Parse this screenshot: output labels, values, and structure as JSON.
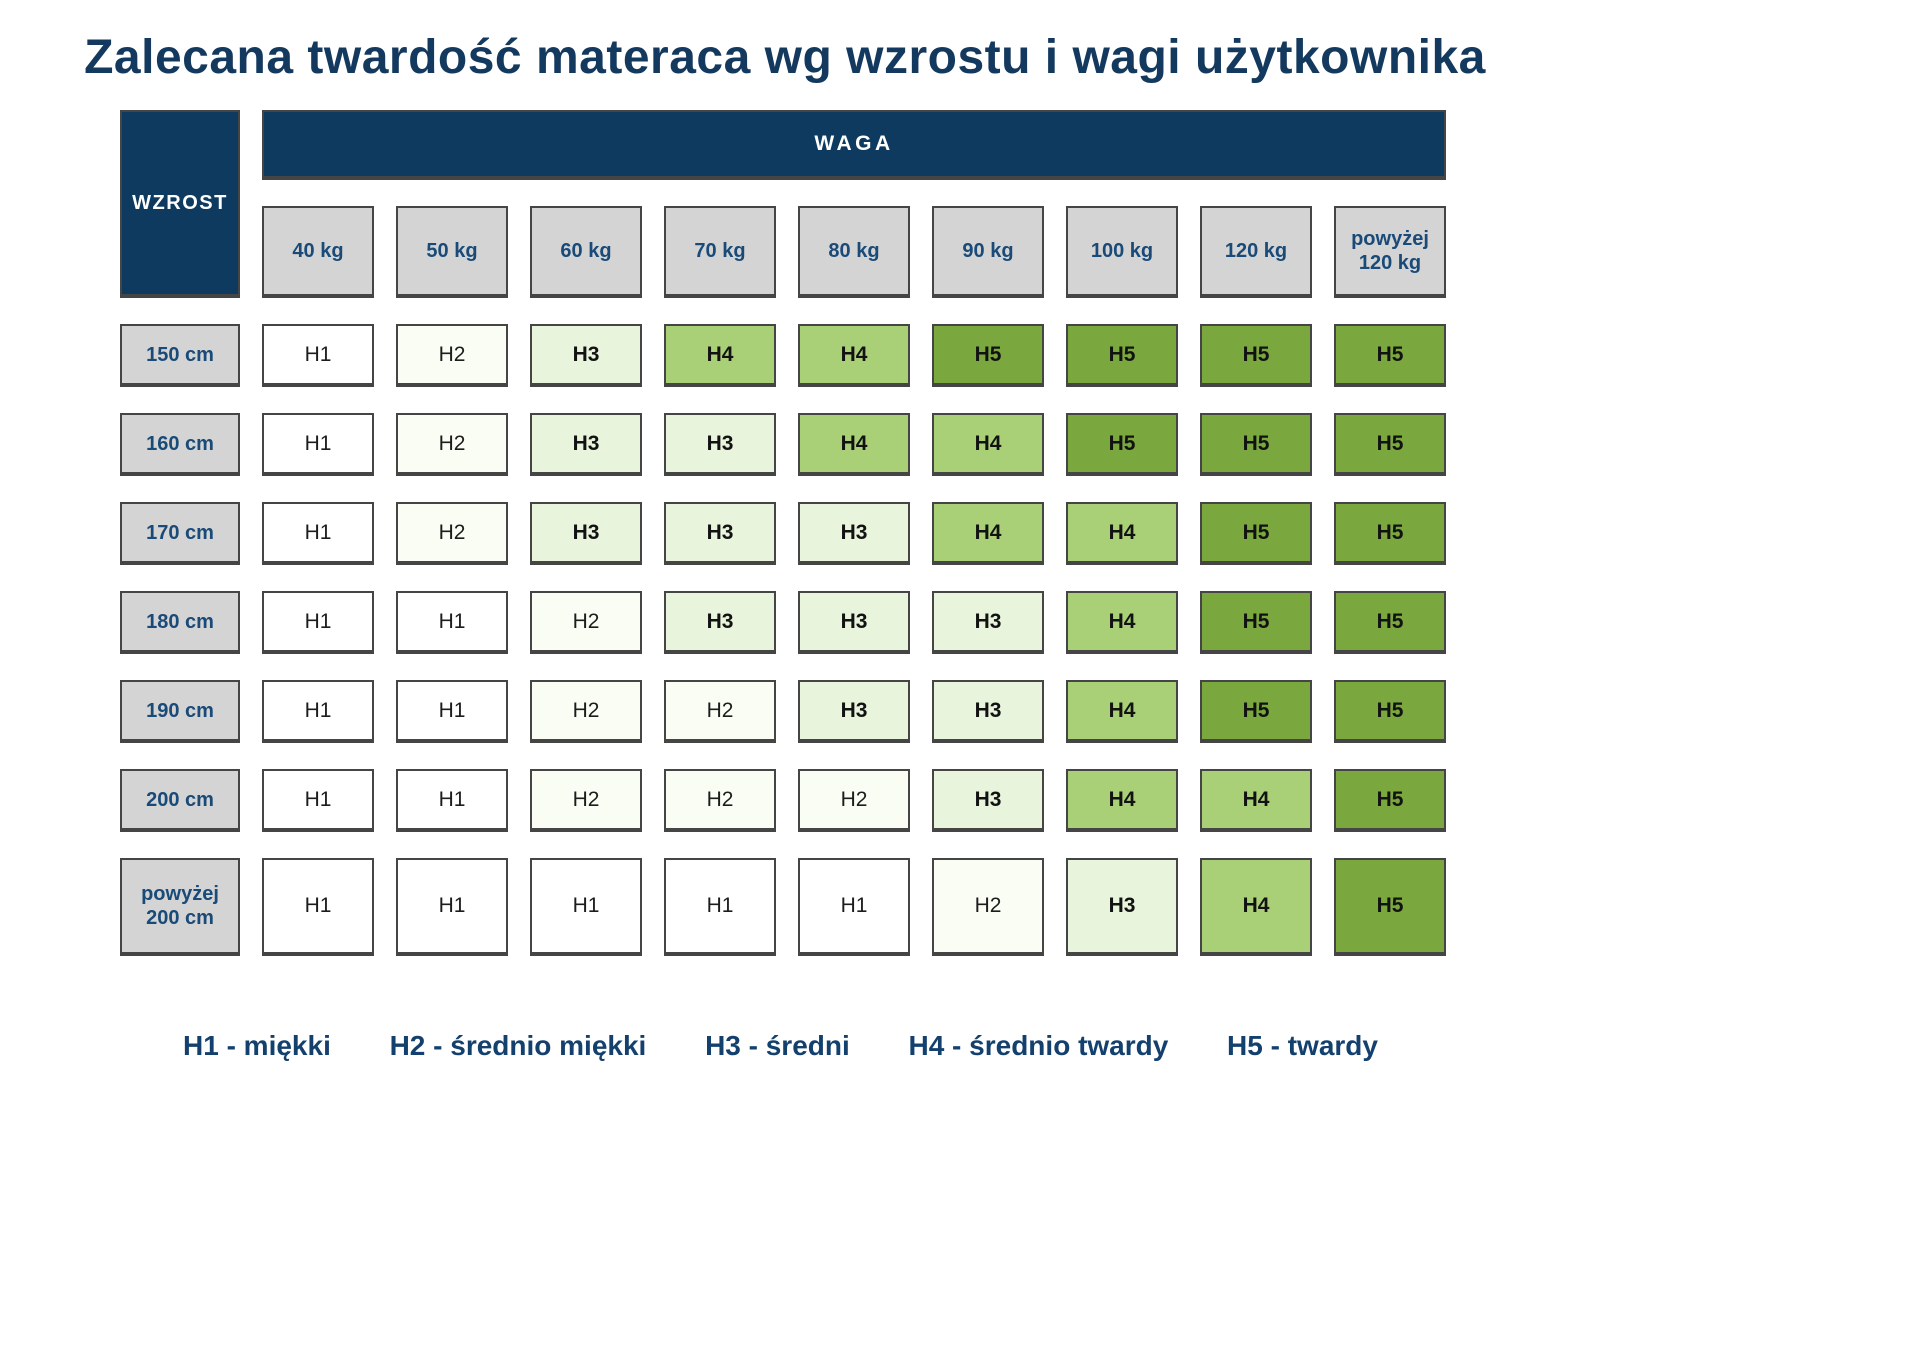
{
  "title": "Zalecana twardość materaca wg wzrostu i wagi użytkownika",
  "table": {
    "corner_label": "WZROST",
    "weight_header": "WAGA",
    "weight_columns": [
      "40 kg",
      "50 kg",
      "60 kg",
      "70 kg",
      "80 kg",
      "90 kg",
      "100 kg",
      "120 kg",
      "powyżej 120 kg"
    ],
    "rows": [
      {
        "height": "150 cm",
        "values": [
          "H1",
          "H2",
          "H3",
          "H4",
          "H4",
          "H5",
          "H5",
          "H5",
          "H5"
        ]
      },
      {
        "height": "160 cm",
        "values": [
          "H1",
          "H2",
          "H3",
          "H3",
          "H4",
          "H4",
          "H5",
          "H5",
          "H5"
        ]
      },
      {
        "height": "170 cm",
        "values": [
          "H1",
          "H2",
          "H3",
          "H3",
          "H3",
          "H4",
          "H4",
          "H5",
          "H5"
        ]
      },
      {
        "height": "180 cm",
        "values": [
          "H1",
          "H1",
          "H2",
          "H3",
          "H3",
          "H3",
          "H4",
          "H5",
          "H5"
        ]
      },
      {
        "height": "190 cm",
        "values": [
          "H1",
          "H1",
          "H2",
          "H2",
          "H3",
          "H3",
          "H4",
          "H5",
          "H5"
        ]
      },
      {
        "height": "200 cm",
        "values": [
          "H1",
          "H1",
          "H2",
          "H2",
          "H2",
          "H3",
          "H4",
          "H4",
          "H5"
        ]
      },
      {
        "height": "powyżej 200 cm",
        "values": [
          "H1",
          "H1",
          "H1",
          "H1",
          "H1",
          "H2",
          "H3",
          "H4",
          "H5"
        ]
      }
    ]
  },
  "legend": {
    "items": [
      "H1 - miękki",
      "H2 - średnio miękki",
      "H3 - średni",
      "H4 - średnio twardy",
      "H5 - twardy"
    ]
  },
  "colors": {
    "navy": "#0e3a60",
    "header_text": "#1a4a78",
    "gray_cell": "#d4d4d4",
    "levels": {
      "H1": "#ffffff",
      "H2": "#f9fdf3",
      "H3": "#e9f4dc",
      "H4": "#a9d077",
      "H5": "#7aa83e"
    }
  },
  "chart_data": {
    "type": "heatmap",
    "title": "Zalecana twardość materaca wg wzrostu i wagi użytkownika",
    "xlabel": "WAGA",
    "ylabel": "WZROST",
    "x_categories": [
      "40 kg",
      "50 kg",
      "60 kg",
      "70 kg",
      "80 kg",
      "90 kg",
      "100 kg",
      "120 kg",
      "powyżej 120 kg"
    ],
    "y_categories": [
      "150 cm",
      "160 cm",
      "170 cm",
      "180 cm",
      "190 cm",
      "200 cm",
      "powyżej 200 cm"
    ],
    "values": [
      [
        "H1",
        "H2",
        "H3",
        "H4",
        "H4",
        "H5",
        "H5",
        "H5",
        "H5"
      ],
      [
        "H1",
        "H2",
        "H3",
        "H3",
        "H4",
        "H4",
        "H5",
        "H5",
        "H5"
      ],
      [
        "H1",
        "H2",
        "H3",
        "H3",
        "H3",
        "H4",
        "H4",
        "H5",
        "H5"
      ],
      [
        "H1",
        "H1",
        "H2",
        "H3",
        "H3",
        "H3",
        "H4",
        "H5",
        "H5"
      ],
      [
        "H1",
        "H1",
        "H2",
        "H2",
        "H3",
        "H3",
        "H4",
        "H5",
        "H5"
      ],
      [
        "H1",
        "H1",
        "H2",
        "H2",
        "H2",
        "H3",
        "H4",
        "H4",
        "H5"
      ],
      [
        "H1",
        "H1",
        "H1",
        "H1",
        "H1",
        "H2",
        "H3",
        "H4",
        "H5"
      ]
    ],
    "legend_entries": [
      "H1 - miękki",
      "H2 - średnio miękki",
      "H3 - średni",
      "H4 - średnio twardy",
      "H5 - twardy"
    ],
    "value_color_map": {
      "H1": "#ffffff",
      "H2": "#f9fdf3",
      "H3": "#e9f4dc",
      "H4": "#a9d077",
      "H5": "#7aa83e"
    },
    "grid": false,
    "legend_position": "bottom"
  }
}
